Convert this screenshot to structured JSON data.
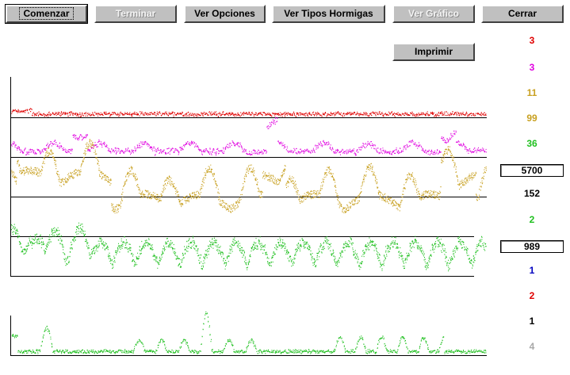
{
  "toolbar": {
    "comenzar": "Comenzar",
    "terminar": "Terminar",
    "ver_opciones": "Ver Opciones",
    "ver_tipos_hormigas": "Ver Tipos Hormigas",
    "ver_grafico": "Ver Gráfico",
    "cerrar": "Cerrar",
    "imprimir": "Imprimir"
  },
  "counters": {
    "red": "3",
    "magenta": "3",
    "gold_1": "11",
    "gold_2": "99",
    "green_1": "36",
    "box_1": "5700",
    "black_1": "152",
    "green_2": "2",
    "box_2": "989",
    "blue": "1",
    "red_2": "2",
    "black_2": "1",
    "gray": "4"
  },
  "colors": {
    "red": "#e00000",
    "magenta": "#e000e0",
    "gold": "#c8a020",
    "green": "#20c020",
    "blue": "#0000c0",
    "gray": "#a8a8a8",
    "black": "#000000"
  }
}
